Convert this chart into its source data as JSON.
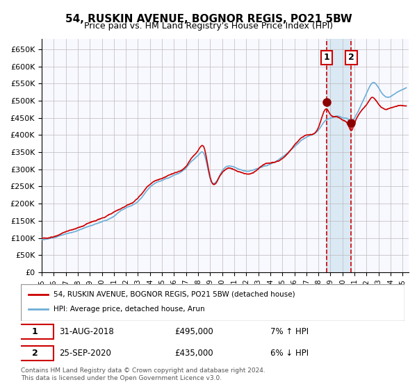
{
  "title": "54, RUSKIN AVENUE, BOGNOR REGIS, PO21 5BW",
  "subtitle": "Price paid vs. HM Land Registry's House Price Index (HPI)",
  "legend_entry1": "54, RUSKIN AVENUE, BOGNOR REGIS, PO21 5BW (detached house)",
  "legend_entry2": "HPI: Average price, detached house, Arun",
  "transaction1_date": "31-AUG-2018",
  "transaction1_price": 495000,
  "transaction1_hpi": "7% ↑ HPI",
  "transaction2_date": "25-SEP-2020",
  "transaction2_price": 435000,
  "transaction2_hpi": "6% ↓ HPI",
  "footnote": "Contains HM Land Registry data © Crown copyright and database right 2024.\nThis data is licensed under the Open Government Licence v3.0.",
  "hpi_color": "#6baed6",
  "house_color": "#cc0000",
  "marker_color": "#8b0000",
  "vline_color": "#cc0000",
  "shade_color": "#d0e4f0",
  "ylim": [
    0,
    680000
  ],
  "yticks": [
    0,
    50000,
    100000,
    150000,
    200000,
    250000,
    300000,
    350000,
    400000,
    450000,
    500000,
    550000,
    600000,
    650000
  ],
  "transaction1_year": 2018.667,
  "transaction2_year": 2020.733
}
